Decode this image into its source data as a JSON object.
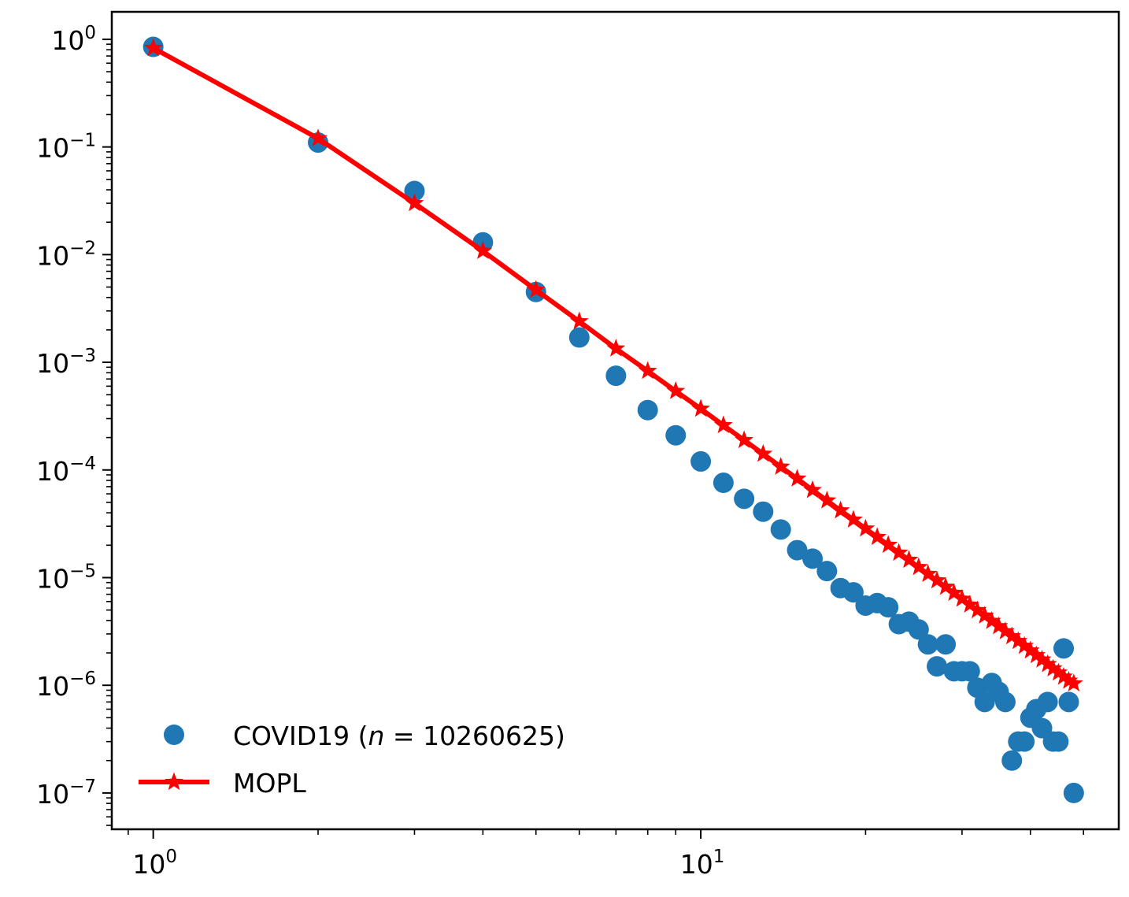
{
  "chart_data": {
    "type": "scatter",
    "x_scale": "log",
    "y_scale": "log",
    "xlim": [
      0.84,
      58
    ],
    "ylim": [
      4.6e-08,
      1.8
    ],
    "grid": false,
    "legend_placement": "lower-left",
    "x_ticks": [
      {
        "value": 1,
        "base": "10",
        "exp": "0"
      },
      {
        "value": 10,
        "base": "10",
        "exp": "1"
      }
    ],
    "y_ticks": [
      {
        "value": 1,
        "base": "10",
        "exp": "0"
      },
      {
        "value": 0.1,
        "base": "10",
        "exp": "−1"
      },
      {
        "value": 0.01,
        "base": "10",
        "exp": "−2"
      },
      {
        "value": 0.001,
        "base": "10",
        "exp": "−3"
      },
      {
        "value": 0.0001,
        "base": "10",
        "exp": "−4"
      },
      {
        "value": 1e-05,
        "base": "10",
        "exp": "−5"
      },
      {
        "value": 1e-06,
        "base": "10",
        "exp": "−6"
      },
      {
        "value": 1e-07,
        "base": "10",
        "exp": "−7"
      }
    ],
    "series": [
      {
        "name": "COVID19 (n = 10260625)",
        "legend_label_prefix": "COVID19 (",
        "legend_label_var": "n",
        "legend_label_rest": " = 10260625)",
        "kind": "scatter",
        "color": "#1f77b4",
        "x": [
          1,
          2,
          3,
          4,
          5,
          6,
          7,
          8,
          9,
          10,
          11,
          12,
          13,
          14,
          15,
          16,
          17,
          18,
          19,
          20,
          21,
          22,
          23,
          24,
          25,
          26,
          27,
          28,
          29,
          30,
          31,
          32,
          33,
          34,
          35,
          36,
          37,
          38,
          39,
          40,
          41,
          42,
          43,
          44,
          45,
          46,
          47,
          48
        ],
        "y": [
          0.85,
          0.11,
          0.039,
          0.013,
          0.0045,
          0.0017,
          0.00075,
          0.00036,
          0.00021,
          0.00012,
          7.6e-05,
          5.4e-05,
          4.1e-05,
          2.8e-05,
          1.8e-05,
          1.5e-05,
          1.15e-05,
          8e-06,
          7.3e-06,
          5.5e-06,
          5.8e-06,
          5.3e-06,
          3.7e-06,
          3.9e-06,
          3.3e-06,
          2.4e-06,
          1.5e-06,
          2.4e-06,
          1.35e-06,
          1.35e-06,
          1.35e-06,
          9.5e-07,
          7e-07,
          1.05e-06,
          8.7e-07,
          7e-07,
          2e-07,
          3e-07,
          3e-07,
          5e-07,
          6e-07,
          4e-07,
          7e-07,
          3e-07,
          3e-07,
          2.2e-06,
          7e-07,
          1e-07
        ]
      },
      {
        "name": "MOPL",
        "kind": "line",
        "color": "#ff0000",
        "x": [
          1,
          2,
          3,
          4,
          5,
          6,
          7,
          8,
          9,
          10,
          11,
          12,
          13,
          14,
          15,
          16,
          17,
          18,
          19,
          20,
          21,
          22,
          23,
          24,
          25,
          26,
          27,
          28,
          29,
          30,
          31,
          32,
          33,
          34,
          35,
          36,
          37,
          38,
          39,
          40,
          41,
          42,
          43,
          44,
          45,
          46,
          47,
          48
        ],
        "y": [
          0.83,
          0.12,
          0.03,
          0.0108,
          0.0047,
          0.0024,
          0.00134,
          0.00083,
          0.00054,
          0.00037,
          0.00026,
          0.000189,
          0.000141,
          0.000107,
          8.3e-05,
          6.5e-05,
          5.2e-05,
          4.2e-05,
          3.45e-05,
          2.85e-05,
          2.38e-05,
          2.01e-05,
          1.7e-05,
          1.46e-05,
          1.25e-05,
          1.08e-05,
          9.4e-06,
          8.2e-06,
          7.2e-06,
          6.35e-06,
          5.6e-06,
          4.97e-06,
          4.43e-06,
          3.95e-06,
          3.53e-06,
          3.17e-06,
          2.85e-06,
          2.57e-06,
          2.32e-06,
          2.1e-06,
          1.9e-06,
          1.73e-06,
          1.57e-06,
          1.43e-06,
          1.31e-06,
          1.2e-06,
          1.1e-06,
          1.04e-06
        ]
      }
    ]
  }
}
